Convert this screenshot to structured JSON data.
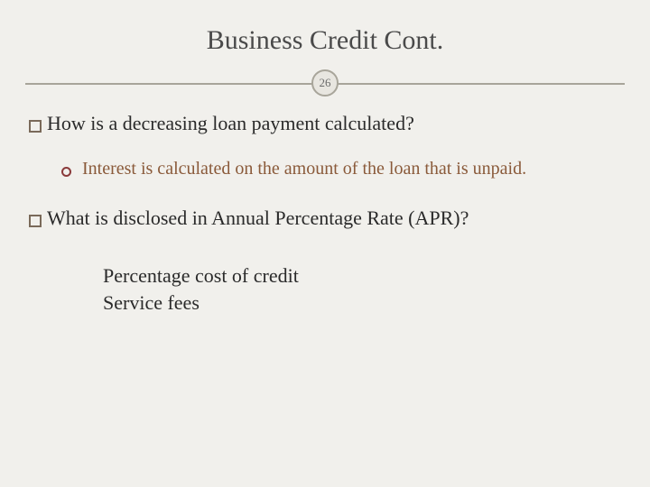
{
  "colors": {
    "background": "#f1f0ec",
    "title_text": "#4a4a4a",
    "divider": "#a8a59a",
    "circle_bg": "#e8e6e0",
    "circle_border": "#a8a59a",
    "page_num_text": "#6a6a6a",
    "square_bullet_border": "#7a6a5a",
    "question_text": "#2a2a2a",
    "circle_bullet_border": "#8a3a3a",
    "answer_text_brown": "#8a5a3a",
    "answer_block_text": "#2a2a2a"
  },
  "typography": {
    "title_fontsize": 30,
    "question_fontsize": 22,
    "answer_fontsize": 20,
    "answer_block_fontsize": 22,
    "page_num_fontsize": 13,
    "font_family": "Georgia, serif"
  },
  "title": "Business Credit Cont.",
  "page_number": "26",
  "question1": "How is a decreasing loan payment calculated?",
  "answer1": "Interest is calculated on the amount of the loan that is unpaid.",
  "question2": "What is disclosed in Annual Percentage Rate (APR)?",
  "answer2_line1": "Percentage cost of credit",
  "answer2_line2": "Service fees"
}
